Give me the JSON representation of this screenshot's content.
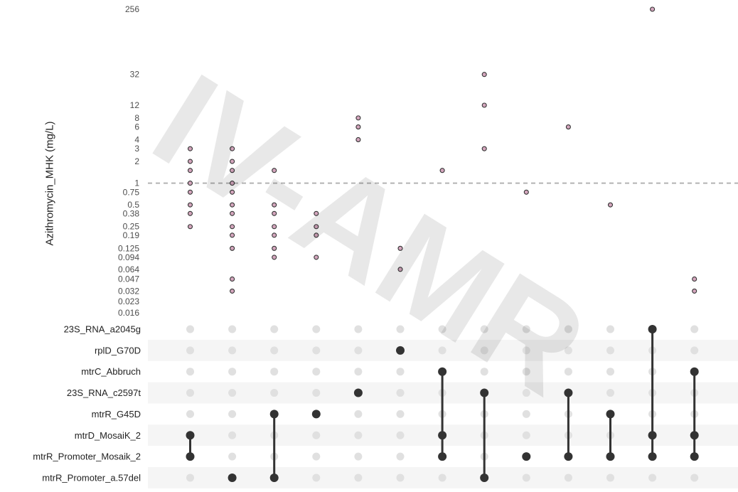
{
  "chart_data": {
    "type": "scatter",
    "subtype": "upset-plot",
    "ylabel": "Azithromycin_MHK (mg/L)",
    "yscale": "log2",
    "ylim": [
      0.016,
      256
    ],
    "yticks": [
      "256",
      "32",
      "12",
      "8",
      "6",
      "4",
      "3",
      "2",
      "1",
      "0.75",
      "0.5",
      "0.38",
      "0.25",
      "0.19",
      "0.125",
      "0.094",
      "0.064",
      "0.047",
      "0.032",
      "0.023",
      "0.016"
    ],
    "reference_line": 1,
    "sets": [
      "23S_RNA_a2045g",
      "rplD_G70D",
      "mtrC_Abbruch",
      "23S_RNA_c2597t",
      "mtrR_G45D",
      "mtrD_MosaiK_2",
      "mtrR_Promoter_Mosaik_2",
      "mtrR_Promoter_a.57del"
    ],
    "intersections": [
      {
        "members": [
          "mtrD_MosaiK_2",
          "mtrR_Promoter_Mosaik_2"
        ],
        "values": [
          3,
          2,
          1.5,
          1,
          0.75,
          0.5,
          0.38,
          0.25
        ]
      },
      {
        "members": [
          "mtrR_Promoter_a.57del"
        ],
        "values": [
          3,
          2,
          1.5,
          1,
          0.75,
          0.5,
          0.38,
          0.25,
          0.19,
          0.125,
          0.047,
          0.032
        ]
      },
      {
        "members": [
          "mtrR_G45D",
          "mtrR_Promoter_a.57del"
        ],
        "values": [
          1.5,
          0.5,
          0.38,
          0.25,
          0.19,
          0.125,
          0.094
        ]
      },
      {
        "members": [
          "mtrR_G45D"
        ],
        "values": [
          0.38,
          0.25,
          0.19,
          0.094
        ]
      },
      {
        "members": [
          "23S_RNA_c2597t"
        ],
        "values": [
          8,
          6,
          4
        ]
      },
      {
        "members": [
          "rplD_G70D"
        ],
        "values": [
          0.125,
          0.064
        ]
      },
      {
        "members": [
          "mtrC_Abbruch",
          "mtrD_MosaiK_2",
          "mtrR_Promoter_Mosaik_2"
        ],
        "values": [
          1.5
        ]
      },
      {
        "members": [
          "23S_RNA_c2597t",
          "mtrR_Promoter_a.57del"
        ],
        "values": [
          32,
          12,
          3
        ]
      },
      {
        "members": [
          "mtrR_Promoter_Mosaik_2"
        ],
        "values": [
          0.75
        ]
      },
      {
        "members": [
          "23S_RNA_c2597t",
          "mtrR_Promoter_Mosaik_2"
        ],
        "values": [
          6
        ]
      },
      {
        "members": [
          "mtrR_G45D",
          "mtrR_Promoter_Mosaik_2"
        ],
        "values": [
          0.5
        ]
      },
      {
        "members": [
          "23S_RNA_a2045g",
          "mtrD_MosaiK_2",
          "mtrR_Promoter_Mosaik_2"
        ],
        "values": [
          256
        ]
      },
      {
        "members": [
          "mtrC_Abbruch",
          "mtrD_MosaiK_2",
          "mtrR_Promoter_Mosaik_2"
        ],
        "values": [
          0.047,
          0.032
        ]
      }
    ],
    "colors": {
      "point_fill": "#d4a6bd",
      "point_stroke": "#333333",
      "matrix_active": "#333333",
      "matrix_inactive": "#e0e0e0",
      "stripe": "#f5f5f5",
      "reference_line": "#b3b3b3"
    }
  },
  "watermark": "IV-AMR"
}
